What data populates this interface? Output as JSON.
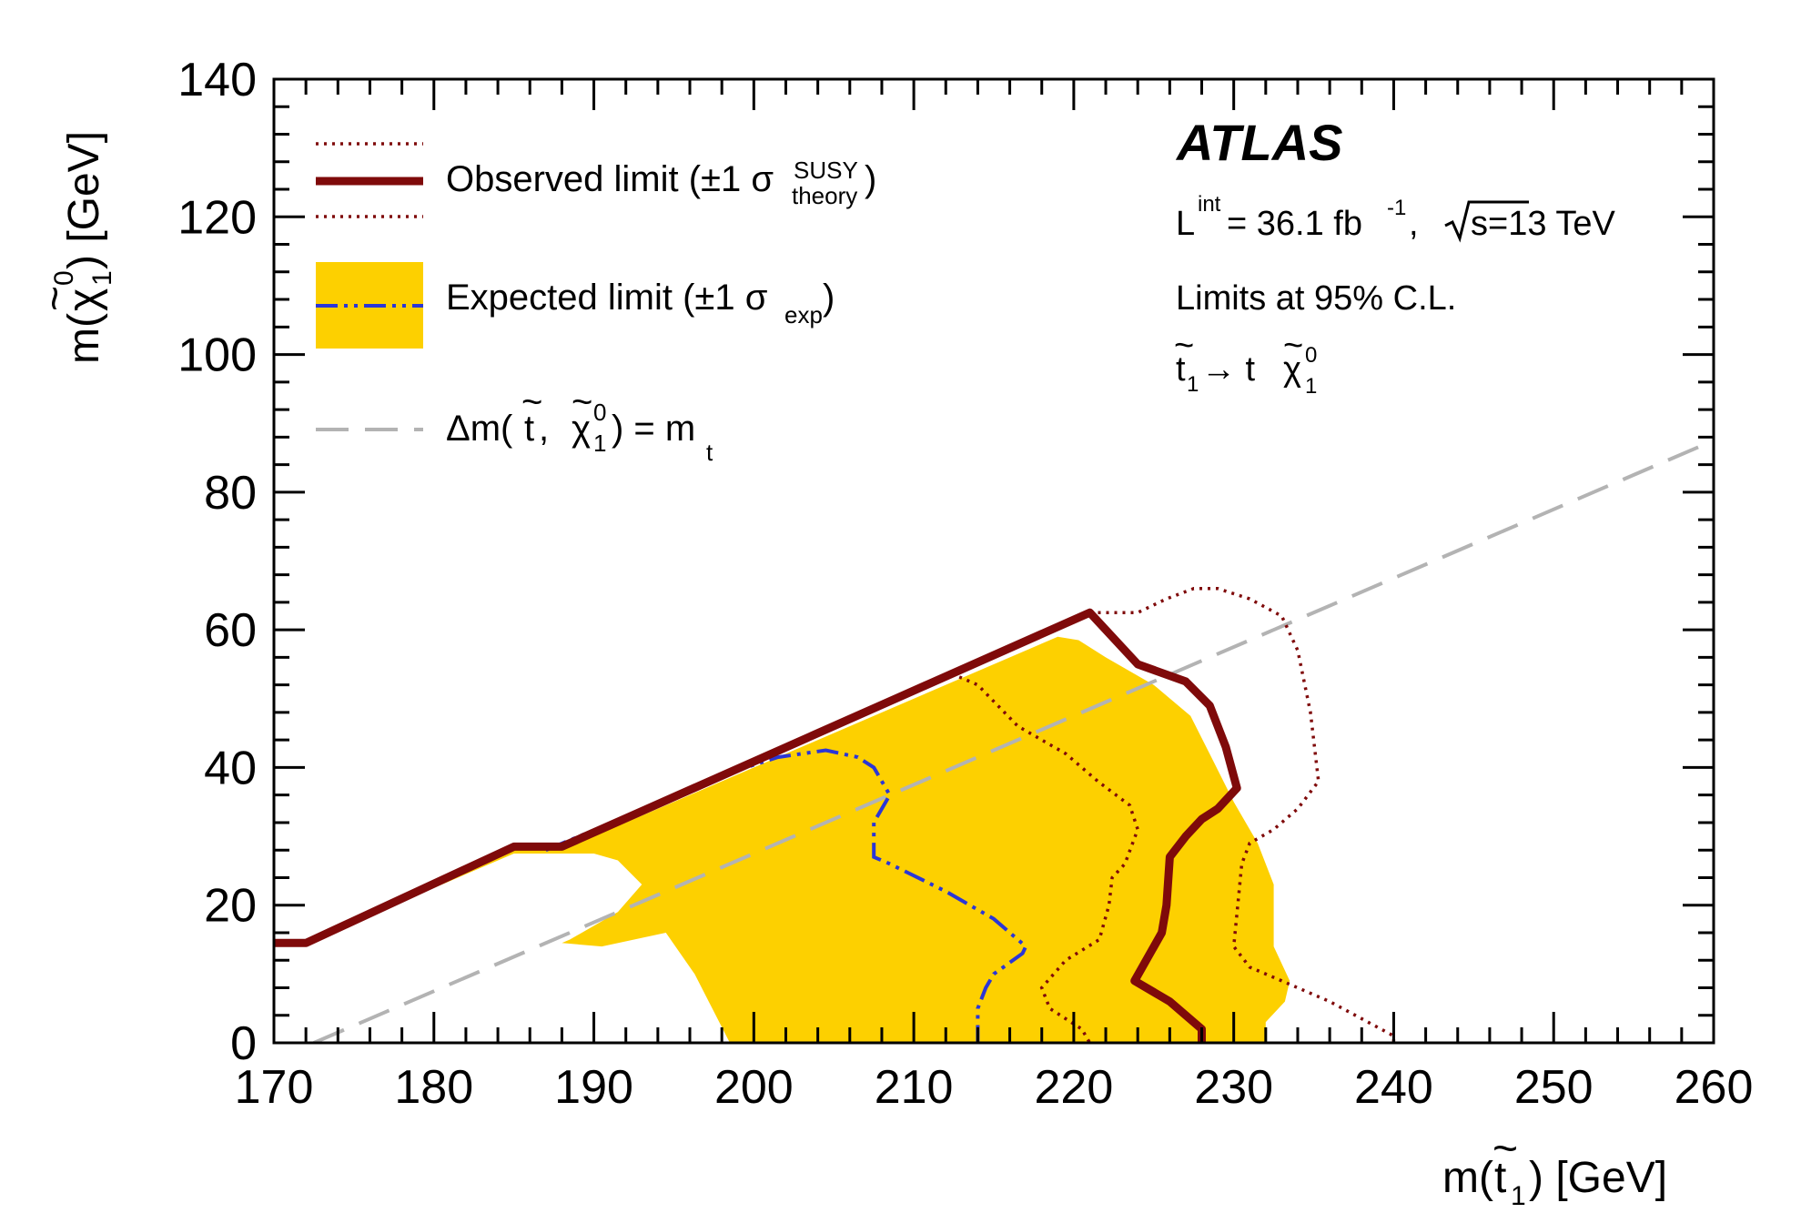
{
  "chart_data": {
    "type": "line",
    "xlabel": "m(t̃₁) [GeV]",
    "ylabel": "m(χ̃₁⁰) [GeV]",
    "xlim": [
      170,
      260
    ],
    "ylim": [
      0,
      140
    ],
    "x_ticks": [
      "170",
      "180",
      "190",
      "200",
      "210",
      "220",
      "230",
      "240",
      "250",
      "260"
    ],
    "y_ticks": [
      "0",
      "20",
      "40",
      "60",
      "80",
      "100",
      "120",
      "140"
    ],
    "legend_placement": "top-left",
    "colors": {
      "observed": "#7f0a0a",
      "expected": "#2b36d6",
      "band": "#fdd000",
      "diagonal": "#b3b3b3"
    },
    "series": [
      {
        "name": "Observed limit (±1 σ theory SUSY)",
        "style": "solid",
        "points": [
          [
            170,
            14.5
          ],
          [
            172,
            14.5
          ],
          [
            185,
            28.5
          ],
          [
            188,
            28.5
          ],
          [
            221,
            62.5
          ],
          [
            224,
            55
          ],
          [
            227,
            52.5
          ],
          [
            228.5,
            49
          ],
          [
            229.5,
            43
          ],
          [
            230.2,
            37
          ],
          [
            229,
            34
          ],
          [
            228,
            32.5
          ],
          [
            227,
            30
          ],
          [
            226,
            27
          ],
          [
            225.8,
            20
          ],
          [
            225.5,
            16
          ],
          [
            223.8,
            9
          ],
          [
            226,
            6
          ],
          [
            228,
            2
          ],
          [
            228,
            0
          ]
        ]
      },
      {
        "name": "Observed limit +1σ theory",
        "style": "dotted",
        "points": [
          [
            221,
            62.5
          ],
          [
            224,
            62.5
          ],
          [
            225.8,
            64.5
          ],
          [
            227.5,
            66
          ],
          [
            229,
            66
          ],
          [
            231,
            64.5
          ],
          [
            233,
            62
          ],
          [
            234,
            57
          ],
          [
            234.8,
            48
          ],
          [
            235.3,
            38
          ],
          [
            234,
            34
          ],
          [
            232.5,
            31
          ],
          [
            231,
            29
          ],
          [
            230.5,
            26
          ],
          [
            230,
            14
          ],
          [
            231,
            11
          ],
          [
            233,
            9
          ],
          [
            236,
            6
          ],
          [
            240,
            1
          ],
          [
            240,
            0
          ]
        ]
      },
      {
        "name": "Observed limit −1σ theory",
        "style": "dotted",
        "points": [
          [
            188,
            28.5
          ],
          [
            212.5,
            53.5
          ],
          [
            214,
            52
          ],
          [
            216.5,
            46
          ],
          [
            219.5,
            42
          ],
          [
            221.5,
            38
          ],
          [
            223.5,
            34.5
          ],
          [
            224,
            31
          ],
          [
            223.2,
            26
          ],
          [
            222.4,
            24
          ],
          [
            222.2,
            20
          ],
          [
            221.6,
            15
          ],
          [
            219.5,
            12
          ],
          [
            218,
            8
          ],
          [
            218.5,
            5
          ],
          [
            220.5,
            2
          ],
          [
            221,
            0
          ]
        ]
      },
      {
        "name": "Expected limit (±1 σ exp)",
        "style": "dash-dot",
        "points": [
          [
            187,
            28
          ],
          [
            199.5,
            40
          ],
          [
            201.5,
            41.5
          ],
          [
            204.5,
            42.5
          ],
          [
            206.5,
            41.5
          ],
          [
            207.5,
            40
          ],
          [
            208.5,
            36
          ],
          [
            207.5,
            32
          ],
          [
            207.5,
            27
          ],
          [
            208.5,
            26
          ],
          [
            212,
            22
          ],
          [
            215,
            18
          ],
          [
            217,
            14
          ],
          [
            216.8,
            13
          ],
          [
            215,
            10
          ],
          [
            214.5,
            8
          ],
          [
            214,
            5
          ],
          [
            214,
            0
          ]
        ]
      },
      {
        "name": "Expected limit ±1σ exp band",
        "style": "filled",
        "points": [
          [
            170,
            14.5
          ],
          [
            171,
            14.5
          ],
          [
            172,
            14.5
          ],
          [
            185,
            28
          ],
          [
            188,
            28
          ],
          [
            219,
            59
          ],
          [
            220.3,
            58.5
          ],
          [
            222,
            56
          ],
          [
            225,
            52
          ],
          [
            227.3,
            47.5
          ],
          [
            228.6,
            41.5
          ],
          [
            230,
            35
          ],
          [
            231.5,
            29
          ],
          [
            232.5,
            23
          ],
          [
            232.5,
            17
          ],
          [
            232.5,
            14
          ],
          [
            233.5,
            9
          ],
          [
            233.2,
            6
          ],
          [
            232,
            3
          ],
          [
            232,
            0
          ],
          [
            198.5,
            0
          ],
          [
            196.3,
            10
          ],
          [
            194.5,
            16
          ],
          [
            190.5,
            14
          ],
          [
            188,
            14.5
          ],
          [
            188.5,
            15
          ],
          [
            191.5,
            19
          ],
          [
            193,
            23
          ],
          [
            191.5,
            26.5
          ],
          [
            190,
            27.5
          ],
          [
            185,
            27.5
          ],
          [
            172,
            14.5
          ],
          [
            170,
            14.5
          ]
        ]
      },
      {
        "name": "Δm( t̃ , χ̃₁⁰ ) = m_t",
        "style": "dashed",
        "points": [
          [
            172.5,
            0
          ],
          [
            260,
            87.5
          ]
        ]
      }
    ]
  },
  "legend": {
    "observed_main": "Observed limit (±1 σ",
    "observed_sup": "SUSY",
    "observed_sub": "theory",
    "observed_close": ")",
    "expected_main": "Expected limit (±1 σ",
    "expected_sub": "exp",
    "expected_close": ")",
    "diagonal_a": "Δm( ",
    "diagonal_t": "t",
    "diagonal_tilde": "~",
    "diagonal_comma": " , ",
    "diagonal_chi": "χ",
    "diagonal_chi_tilde": "~",
    "diagonal_chi_sup": "0",
    "diagonal_chi_sub": "1",
    "diagonal_b": " ) = m",
    "diagonal_sub": "t"
  },
  "info": {
    "experiment": "ATLAS",
    "lumi_l": "L",
    "lumi_sup": "int",
    "lumi_value": " = 36.1 fb",
    "lumi_exp": "-1",
    "lumi_sep": ",",
    "sqrt_s": "s=13 TeV",
    "cl": "Limits at 95% C.L.",
    "process_t": "t",
    "process_tilde": "~",
    "process_t_sub": "1",
    "process_arrow": " → t ",
    "process_chi": "χ",
    "process_chi_tilde": "~",
    "process_chi_sup": "0",
    "process_chi_sub": "1"
  },
  "axes": {
    "x_title_m": "m(",
    "x_title_t": "t",
    "x_title_tilde": "~",
    "x_title_sub": "1",
    "x_title_rest": ") [GeV]",
    "y_title_m": "m(",
    "y_title_chi": "χ",
    "y_title_tilde": "~",
    "y_title_sup": "0",
    "y_title_sub": "1",
    "y_title_rest": ") [GeV]"
  }
}
